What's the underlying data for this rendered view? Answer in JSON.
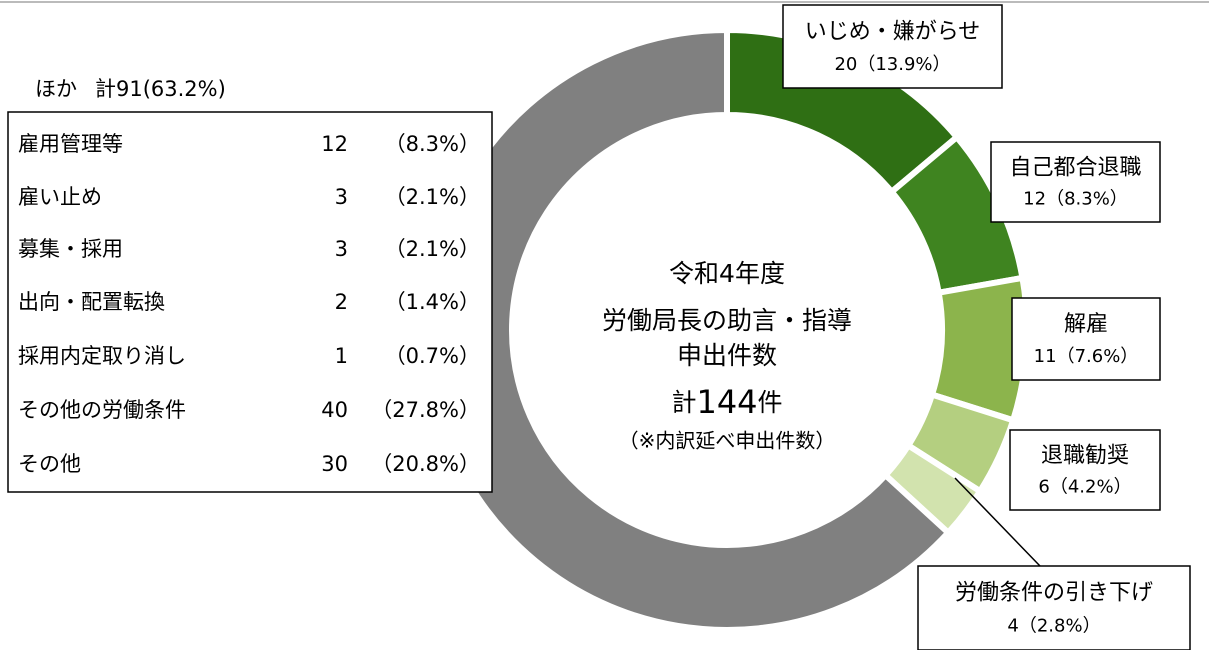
{
  "chart_data": {
    "type": "donut",
    "categories": [
      "いじめ・嫌がらせ",
      "自己都合退職",
      "解雇",
      "退職勧奨",
      "労働条件の引き下げ",
      "ほか"
    ],
    "values": [
      20,
      12,
      11,
      6,
      4,
      91
    ],
    "value_labels": [
      "20（13.9%）",
      "12（8.3%）",
      "11（7.6%）",
      "6（4.2%）",
      "4（2.8%）",
      "計91(63.2%)"
    ],
    "colors": [
      "#2f6f14",
      "#3f8420",
      "#8cb44c",
      "#b4cf80",
      "#d2e3ae",
      "#808080"
    ],
    "center_lines": [
      "令和4年度",
      "労働局長の助言・指導",
      "申出件数"
    ],
    "total": {
      "prefix": "計",
      "value": 144,
      "suffix": "件"
    },
    "note": "（※内訳延べ申出件数）",
    "others_table": [
      [
        "雇用管理等",
        "12",
        "（8.3%）"
      ],
      [
        "雇い止め",
        "3",
        "（2.1%）"
      ],
      [
        "募集・採用",
        "3",
        "（2.1%）"
      ],
      [
        "出向・配置転換",
        "2",
        "（1.4%）"
      ],
      [
        "採用内定取り消し",
        "1",
        "（0.7%）"
      ],
      [
        "その他の労働条件",
        "40",
        "（27.8%）"
      ],
      [
        "その他",
        "30",
        "（20.8%）"
      ]
    ]
  }
}
